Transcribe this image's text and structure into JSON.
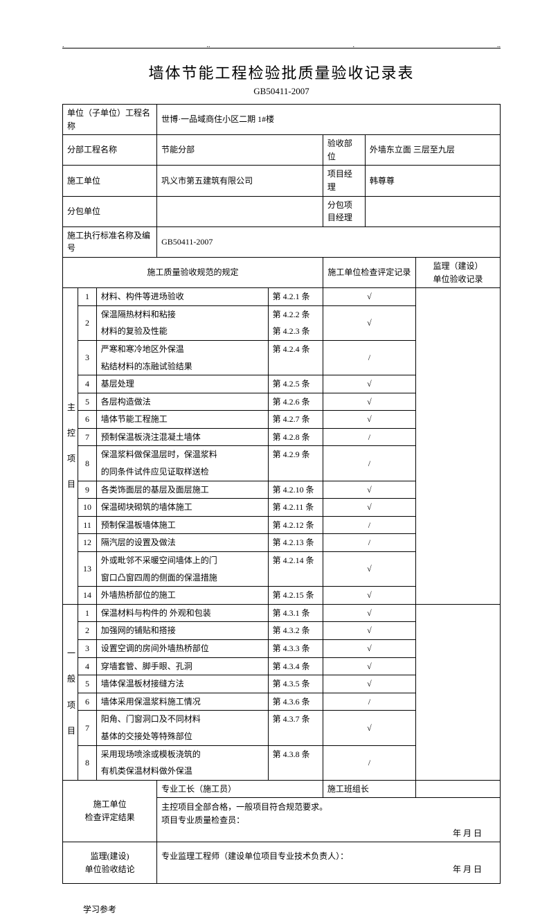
{
  "header_dots": [
    ".",
    "..",
    ".",
    ".."
  ],
  "title": "墙体节能工程检验批质量验收记录表",
  "subtitle": "GB50411-2007",
  "info": {
    "row1_label": "单位（子单位）工程名称",
    "row1_value": "世博·一品域商住小区二期 1#楼",
    "row2_label": "分部工程名称",
    "row2_value": "节能分部",
    "row2_label2": "验收部位",
    "row2_value2": "外墙东立面 三层至九层",
    "row3_label": "施工单位",
    "row3_value": "巩义市第五建筑有限公司",
    "row3_label2": "项目经理",
    "row3_value2": "韩尊尊",
    "row4_label": "分包单位",
    "row4_value": "",
    "row4_label2": "分包项目经理",
    "row4_value2": "",
    "row5_label": "施工执行标准名称及编号",
    "row5_value": "GB50411-2007"
  },
  "columns": {
    "col1": "施工质量验收规范的规定",
    "col2": "施工单位检查评定记录",
    "col3_line1": "监理（建设）",
    "col3_line2": "单位验收记录"
  },
  "group_main_label": "主\n\n控\n\n项\n\n目",
  "group_general_label": "一\n\n般\n\n项\n\n目",
  "main_items": [
    {
      "num": "1",
      "desc": "材料、构件等进场验收",
      "clause": "第 4.2.1 条",
      "mark": "√"
    },
    {
      "num": "2",
      "desc": "保温隔热材料和粘接\n材料的复验及性能",
      "clause": "第 4.2.2 条\n第 4.2.3 条",
      "mark": "√"
    },
    {
      "num": "3",
      "desc": "严寒和寒冷地区外保温\n粘结材料的冻融试验结果",
      "clause": "第 4.2.4 条",
      "mark": "/"
    },
    {
      "num": "4",
      "desc": "基层处理",
      "clause": "第 4.2.5 条",
      "mark": "√"
    },
    {
      "num": "5",
      "desc": "各层构造做法",
      "clause": "第 4.2.6 条",
      "mark": "√"
    },
    {
      "num": "6",
      "desc": "墙体节能工程施工",
      "clause": "第 4.2.7 条",
      "mark": "√"
    },
    {
      "num": "7",
      "desc": "预制保温板浇注混凝土墙体",
      "clause": "第 4.2.8 条",
      "mark": "/"
    },
    {
      "num": "8",
      "desc": "保温浆料做保温层时，保温浆料\n的同条件试件应见证取样送检",
      "clause": "第 4.2.9 条",
      "mark": "/"
    },
    {
      "num": "9",
      "desc": "各类饰面层的基层及面层施工",
      "clause": "第 4.2.10 条",
      "mark": "√"
    },
    {
      "num": "10",
      "desc": "保温砌块砌筑的墙体施工",
      "clause": "第 4.2.11 条",
      "mark": "√"
    },
    {
      "num": "11",
      "desc": "预制保温板墙体施工",
      "clause": "第 4.2.12 条",
      "mark": "/"
    },
    {
      "num": "12",
      "desc": "隔汽层的设置及做法",
      "clause": "第 4.2.13 条",
      "mark": "/"
    },
    {
      "num": "13",
      "desc": "外或毗邻不采暖空间墙体上的门\n窗口凸窗四周的侧面的保温措施",
      "clause": "第 4.2.14 条",
      "mark": "√"
    },
    {
      "num": "14",
      "desc": "外墙热桥部位的施工",
      "clause": "第 4.2.15 条",
      "mark": "√"
    }
  ],
  "general_items": [
    {
      "num": "1",
      "desc": "保温材料与构件的  外观和包装",
      "clause": "第 4.3.1 条",
      "mark": "√"
    },
    {
      "num": "2",
      "desc": "加强网的铺贴和搭接",
      "clause": "第 4.3.2 条",
      "mark": "√"
    },
    {
      "num": "3",
      "desc": "设置空调的房间外墙热桥部位",
      "clause": "第 4.3.3 条",
      "mark": "√"
    },
    {
      "num": "4",
      "desc": "穿墙套管、脚手眼、孔洞",
      "clause": "第 4.3.4 条",
      "mark": "√"
    },
    {
      "num": "5",
      "desc": "墙体保温板材接缝方法",
      "clause": "第 4.3.5 条",
      "mark": "√"
    },
    {
      "num": "6",
      "desc": "墙体采用保温浆料施工情况",
      "clause": "第 4.3.6 条",
      "mark": "/"
    },
    {
      "num": "7",
      "desc": "阳角、门窗洞口及不同材料\n    基体的交接处等特殊部位",
      "clause": "第 4.3.7 条",
      "mark": "√"
    },
    {
      "num": "8",
      "desc": "采用现场喷涂或模板浇筑的\n有机类保温材料做外保温",
      "clause": "第 4.3.8 条",
      "mark": "/"
    }
  ],
  "footer": {
    "construct_unit_label1": "施工单位",
    "construct_unit_label2": "检查评定结果",
    "foreman_label": "专业工长（施工员）",
    "team_leader_label": "施工班组长",
    "conclusion_line": "主控项目全部合格，一般项目符合规范要求。",
    "inspector_label": "项目专业质量检查员：",
    "date_text": "年      月      日",
    "supervise_label1": "监理(建设)",
    "supervise_label2": "单位验收结论",
    "engineer_label": "专业监理工程师（建设单位项目专业技术负责人）："
  },
  "footer_note": "学习参考"
}
